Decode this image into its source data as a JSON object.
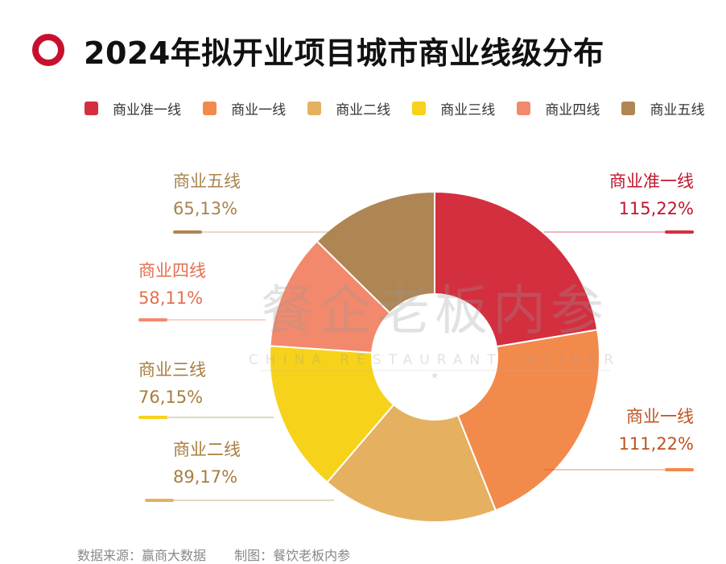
{
  "title": "2024年拟开业项目城市商业线级分布",
  "chart_data": {
    "type": "pie",
    "title": "2024年拟开业项目城市商业线级分布",
    "legend_position": "top",
    "slices": [
      {
        "name": "商业准一线",
        "value": 115,
        "percent": "22%",
        "label": "115,22%",
        "color": "#d32f3f"
      },
      {
        "name": "商业一线",
        "value": 111,
        "percent": "22%",
        "label": "111,22%",
        "color": "#f28a4b"
      },
      {
        "name": "商业二线",
        "value": 89,
        "percent": "17%",
        "label": "89,17%",
        "color": "#e5b060"
      },
      {
        "name": "商业三线",
        "value": 76,
        "percent": "15%",
        "label": "76,15%",
        "color": "#f7d21a"
      },
      {
        "name": "商业四线",
        "value": 58,
        "percent": "11%",
        "label": "58,11%",
        "color": "#f3896c"
      },
      {
        "name": "商业五线",
        "value": 65,
        "percent": "13%",
        "label": "65,13%",
        "color": "#b08554"
      }
    ]
  },
  "label_colors": [
    "#c0162e",
    "#c0531e",
    "#a87d3e",
    "#a87d3e",
    "#e2704f",
    "#a8834e"
  ],
  "watermark": {
    "main": "餐企老板内参",
    "sub": "CHINA RESTAURANT INSIDER"
  },
  "footer": {
    "source": "数据来源：赢商大数据",
    "maker": "制图：餐饮老板内参"
  }
}
